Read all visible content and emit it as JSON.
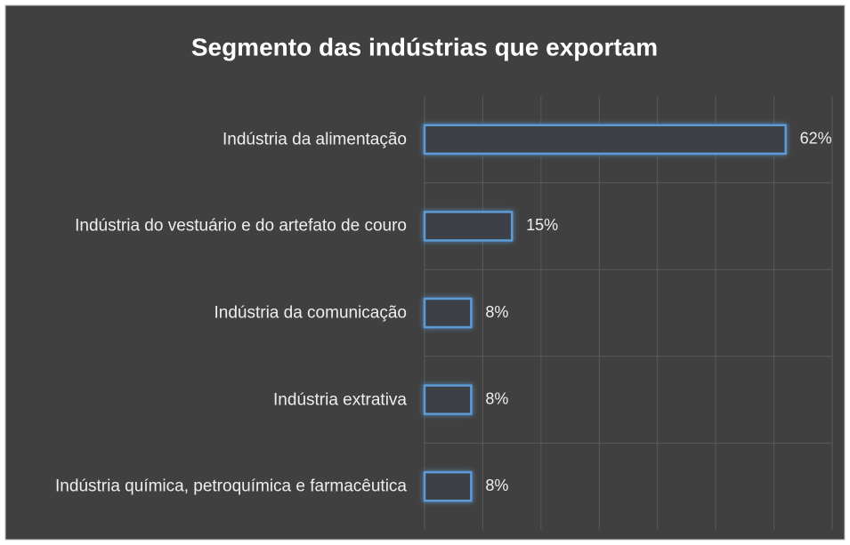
{
  "chart_data": {
    "type": "bar",
    "orientation": "horizontal",
    "title": "Segmento das indústrias que exportam",
    "categories": [
      "Indústria da alimentação",
      "Indústria do vestuário e do artefato de couro",
      "Indústria da comunicação",
      "Indústria extrativa",
      "Indústria química, petroquímica e farmacêutica"
    ],
    "values": [
      62,
      15,
      8,
      8,
      8
    ],
    "value_labels": [
      "62%",
      "15%",
      "8%",
      "8%",
      "8%"
    ],
    "color": "#5b9bd5",
    "xlim": [
      0,
      70
    ],
    "xticks": [
      0,
      10,
      20,
      30,
      40,
      50,
      60,
      70
    ],
    "grid": true
  }
}
